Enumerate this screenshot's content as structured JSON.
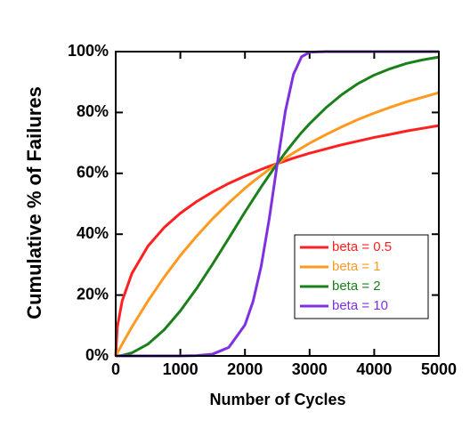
{
  "chart_data": {
    "type": "line",
    "xlabel": "Number of Cycles",
    "ylabel": "Cumulative % of Failures",
    "x": [
      0,
      25,
      100,
      250,
      500,
      750,
      1000,
      1250,
      1500,
      1750,
      2000,
      2125,
      2250,
      2375,
      2500,
      2625,
      2750,
      2875,
      3000,
      3250,
      3500,
      3750,
      4000,
      4250,
      4500,
      4750,
      5000
    ],
    "series": [
      {
        "name": "beta = 0.5",
        "color": "#ff2020",
        "values": [
          0,
          9.5,
          18.1,
          27.1,
          36.1,
          42.2,
          46.9,
          50.7,
          53.9,
          56.7,
          59.1,
          60.2,
          61.3,
          62.3,
          63.2,
          64.1,
          65.0,
          65.8,
          66.6,
          68.0,
          69.4,
          70.6,
          71.8,
          72.8,
          73.9,
          74.8,
          75.7
        ]
      },
      {
        "name": "beta = 1",
        "color": "#ff9a20",
        "values": [
          0,
          1.0,
          3.9,
          9.5,
          18.1,
          25.9,
          33.0,
          39.3,
          45.1,
          50.3,
          55.1,
          57.3,
          59.3,
          61.3,
          63.2,
          65.0,
          66.7,
          68.3,
          69.9,
          72.7,
          75.3,
          77.7,
          79.8,
          81.7,
          83.5,
          85.0,
          86.5
        ]
      },
      {
        "name": "beta = 2",
        "color": "#1a801a",
        "values": [
          0,
          0.01,
          0.16,
          1.0,
          3.9,
          8.6,
          14.8,
          22.1,
          30.2,
          38.7,
          47.3,
          51.4,
          55.5,
          59.4,
          63.2,
          66.8,
          70.2,
          73.4,
          76.3,
          81.5,
          85.9,
          89.5,
          92.3,
          94.4,
          96.1,
          97.3,
          98.2
        ]
      },
      {
        "name": "beta = 10",
        "color": "#7f30e0",
        "values": [
          0,
          0,
          0,
          0,
          0,
          0,
          0.01,
          0.1,
          0.6,
          2.8,
          10.2,
          17.9,
          29.4,
          45.0,
          63.2,
          80.4,
          92.5,
          98.3,
          99.8,
          100,
          100,
          100,
          100,
          100,
          100,
          100,
          100
        ]
      }
    ],
    "xlim": [
      0,
      5000
    ],
    "xticks": [
      0,
      1000,
      2000,
      3000,
      4000,
      5000
    ],
    "ylim": [
      0,
      100
    ],
    "yticks": [
      {
        "value": 0,
        "label": "0%"
      },
      {
        "value": 20,
        "label": "20%"
      },
      {
        "value": 40,
        "label": "40%"
      },
      {
        "value": 60,
        "label": "60%"
      },
      {
        "value": 80,
        "label": "80%"
      },
      {
        "value": 100,
        "label": "100%"
      }
    ],
    "legend": "lower-right"
  }
}
